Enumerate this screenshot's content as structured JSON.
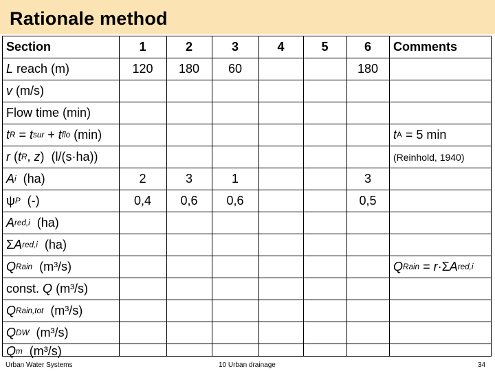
{
  "title": "Rationale method",
  "header": {
    "section": "Section",
    "cols": [
      "1",
      "2",
      "3",
      "4",
      "5",
      "6"
    ],
    "comments": "Comments"
  },
  "rows": {
    "length": {
      "label": "reach (m)",
      "var": "L",
      "values": [
        "120",
        "180",
        "60",
        "",
        "",
        "180"
      ]
    },
    "velocity": {
      "label": "(m/s)",
      "var": "v"
    },
    "flow_time": {
      "label": "Flow time (min)"
    },
    "t_r": {
      "unit": "(min)",
      "note_value": "= 5 min"
    },
    "rain_intensity": {
      "unit": "(l/(s·ha))",
      "note": "(Reinhold, 1940)"
    },
    "area": {
      "unit": "(ha)",
      "values": [
        "2",
        "3",
        "1",
        "",
        "",
        "3"
      ]
    },
    "psi": {
      "unit": "(-)",
      "values": [
        "0,4",
        "0,6",
        "0,6",
        "",
        "",
        "0,5"
      ]
    },
    "a_red": {
      "unit": "(ha)"
    },
    "sum_a_red": {
      "unit": "(ha)"
    },
    "q_rain": {
      "unit": "(m³/s)"
    },
    "const_q": {
      "label": "const.",
      "unit": "(m³/s)"
    },
    "q_rain_tot": {
      "unit": "(m³/s)"
    },
    "q_dw": {
      "unit": "(m³/s)"
    },
    "q_m": {
      "unit": "(m³/s)"
    }
  },
  "footer": {
    "left": "Urban Water Systems",
    "center": "10 Urban drainage",
    "page": "34"
  }
}
